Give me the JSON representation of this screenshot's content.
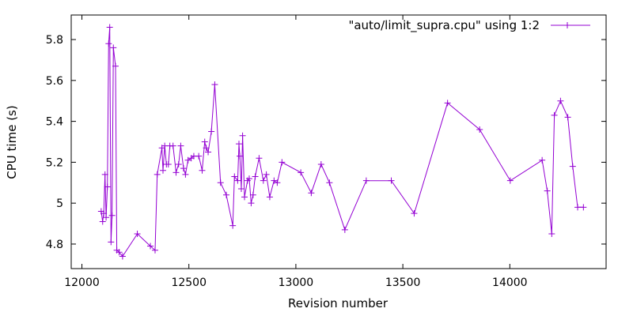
{
  "chart_data": {
    "type": "line",
    "xlabel": "Revision number",
    "ylabel": "CPU time (s)",
    "xlim": [
      11950,
      14450
    ],
    "ylim": [
      4.68,
      5.92
    ],
    "xticks": [
      12000,
      12500,
      13000,
      13500,
      14000
    ],
    "yticks": [
      4.8,
      5,
      5.2,
      5.4,
      5.6,
      5.8
    ],
    "ytick_labels": [
      "4.8",
      "5",
      "5.2",
      "5.4",
      "5.6",
      "5.8"
    ],
    "grid": false,
    "legend_position": "top-right",
    "color": "#9400d3",
    "series": [
      {
        "name": "\"auto/limit_supra.cpu\" using 1:2",
        "x": [
          12090,
          12097,
          12102,
          12108,
          12113,
          12119,
          12125,
          12130,
          12136,
          12141,
          12147,
          12157,
          12163,
          12174,
          12190,
          12259,
          12320,
          12342,
          12352,
          12374,
          12379,
          12387,
          12395,
          12404,
          12411,
          12426,
          12440,
          12452,
          12462,
          12475,
          12484,
          12496,
          12511,
          12523,
          12546,
          12562,
          12574,
          12581,
          12590,
          12605,
          12621,
          12648,
          12675,
          12705,
          12713,
          12728,
          12734,
          12738,
          12745,
          12751,
          12760,
          12774,
          12782,
          12791,
          12800,
          12810,
          12828,
          12848,
          12862,
          12878,
          12898,
          12913,
          12935,
          13023,
          13072,
          13118,
          13157,
          13229,
          13329,
          13446,
          13553,
          13709,
          13859,
          14002,
          14151,
          14175,
          14196,
          14208,
          14237,
          14271,
          14294,
          14317,
          14344
        ],
        "y": [
          4.96,
          4.91,
          4.95,
          5.14,
          4.93,
          5.08,
          5.78,
          5.86,
          4.81,
          4.94,
          5.76,
          5.67,
          4.77,
          4.76,
          4.74,
          4.85,
          4.79,
          4.77,
          5.14,
          5.27,
          5.16,
          5.28,
          5.19,
          5.19,
          5.28,
          5.28,
          5.15,
          5.19,
          5.28,
          5.17,
          5.14,
          5.21,
          5.22,
          5.23,
          5.23,
          5.16,
          5.3,
          5.27,
          5.25,
          5.35,
          5.58,
          5.1,
          5.04,
          4.89,
          5.13,
          5.11,
          5.29,
          5.23,
          5.07,
          5.33,
          5.03,
          5.11,
          5.12,
          5.0,
          5.04,
          5.13,
          5.22,
          5.11,
          5.14,
          5.03,
          5.11,
          5.1,
          5.2,
          5.15,
          5.05,
          5.19,
          5.1,
          4.87,
          5.11,
          5.11,
          4.95,
          5.49,
          5.36,
          5.11,
          5.21,
          5.06,
          4.85,
          5.43,
          5.5,
          5.42,
          5.18,
          4.98,
          4.98
        ]
      }
    ]
  }
}
